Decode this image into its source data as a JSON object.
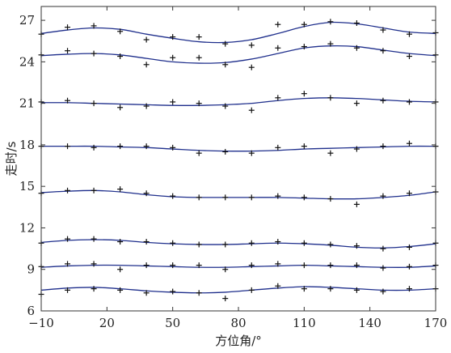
{
  "chart_data": {
    "type": "scatter",
    "xlabel": "方位角/°",
    "ylabel": "走时/s",
    "xlim": [
      -10,
      170
    ],
    "ylim": [
      6,
      28
    ],
    "xticks": [
      -10,
      20,
      50,
      80,
      110,
      140,
      170
    ],
    "xtick_labels": [
      "−10",
      "20",
      "50",
      "80",
      "110",
      "140",
      "170"
    ],
    "yticks": [
      6,
      9,
      12,
      15,
      18,
      21,
      24,
      27
    ],
    "ytick_labels": [
      "6",
      "9",
      "12",
      "15",
      "18",
      "21",
      "24",
      "27"
    ],
    "grid": false,
    "colors": {
      "curve": "#1f2f8c",
      "marker": "#111111"
    },
    "marker_symbol": "+",
    "series": [
      {
        "x": [
          -10,
          2,
          14,
          26,
          38,
          50,
          62,
          74,
          86,
          98,
          110,
          122,
          134,
          146,
          158,
          170
        ],
        "points": [
          7.2,
          7.5,
          7.6,
          7.5,
          7.3,
          7.4,
          7.3,
          6.9,
          7.5,
          7.8,
          7.6,
          7.6,
          7.5,
          7.4,
          7.6,
          7.6
        ],
        "curve": [
          7.5,
          7.65,
          7.7,
          7.6,
          7.45,
          7.35,
          7.3,
          7.35,
          7.5,
          7.65,
          7.75,
          7.7,
          7.6,
          7.5,
          7.5,
          7.6
        ]
      },
      {
        "x": [
          -10,
          2,
          14,
          26,
          38,
          50,
          62,
          74,
          86,
          98,
          110,
          122,
          134,
          146,
          158,
          170
        ],
        "points": [
          9.2,
          9.4,
          9.4,
          9.0,
          9.3,
          9.3,
          9.3,
          9.0,
          9.3,
          9.4,
          9.3,
          9.3,
          9.3,
          9.1,
          9.2,
          9.3
        ],
        "curve": [
          9.15,
          9.25,
          9.3,
          9.3,
          9.25,
          9.2,
          9.15,
          9.15,
          9.2,
          9.25,
          9.3,
          9.25,
          9.2,
          9.15,
          9.15,
          9.25
        ]
      },
      {
        "x": [
          -10,
          2,
          14,
          26,
          38,
          50,
          62,
          74,
          86,
          98,
          110,
          122,
          134,
          146,
          158,
          170
        ],
        "points": [
          10.9,
          11.2,
          11.2,
          11.0,
          11.0,
          10.9,
          10.8,
          10.8,
          10.9,
          11.0,
          10.9,
          10.8,
          10.7,
          10.5,
          10.6,
          10.9
        ],
        "curve": [
          10.95,
          11.1,
          11.15,
          11.1,
          10.95,
          10.85,
          10.8,
          10.8,
          10.85,
          10.9,
          10.85,
          10.75,
          10.6,
          10.55,
          10.65,
          10.85
        ]
      },
      {
        "x": [
          -10,
          2,
          14,
          26,
          38,
          50,
          62,
          74,
          86,
          98,
          110,
          122,
          134,
          146,
          158,
          170
        ],
        "points": [
          14.5,
          14.7,
          14.7,
          14.8,
          14.5,
          14.3,
          14.2,
          14.2,
          14.2,
          14.3,
          14.2,
          14.1,
          13.7,
          14.3,
          14.5,
          14.6
        ],
        "curve": [
          14.55,
          14.65,
          14.7,
          14.6,
          14.4,
          14.25,
          14.2,
          14.2,
          14.2,
          14.2,
          14.15,
          14.1,
          14.1,
          14.2,
          14.35,
          14.6
        ]
      },
      {
        "x": [
          -10,
          2,
          14,
          26,
          38,
          50,
          62,
          74,
          86,
          98,
          110,
          122,
          134,
          146,
          158,
          170
        ],
        "points": [
          17.9,
          17.9,
          17.8,
          17.9,
          17.9,
          17.8,
          17.4,
          17.5,
          17.4,
          17.8,
          17.9,
          17.4,
          17.7,
          17.9,
          18.1,
          17.9
        ],
        "curve": [
          17.9,
          17.9,
          17.9,
          17.85,
          17.8,
          17.7,
          17.6,
          17.55,
          17.55,
          17.6,
          17.7,
          17.75,
          17.8,
          17.85,
          17.9,
          17.9
        ]
      },
      {
        "x": [
          -10,
          2,
          14,
          26,
          38,
          50,
          62,
          74,
          86,
          98,
          110,
          122,
          134,
          146,
          158,
          170
        ],
        "points": [
          21.1,
          21.2,
          21.0,
          20.7,
          20.8,
          21.1,
          21.0,
          20.8,
          20.5,
          21.4,
          21.7,
          21.4,
          21.0,
          21.2,
          21.1,
          21.1
        ],
        "curve": [
          21.05,
          21.05,
          21.0,
          20.95,
          20.9,
          20.85,
          20.85,
          20.9,
          21.0,
          21.2,
          21.35,
          21.4,
          21.35,
          21.25,
          21.15,
          21.1
        ]
      },
      {
        "x": [
          -10,
          2,
          14,
          26,
          38,
          50,
          62,
          74,
          86,
          98,
          110,
          122,
          134,
          146,
          158,
          170
        ],
        "points": [
          24.5,
          24.8,
          24.6,
          24.4,
          23.8,
          24.3,
          24.3,
          23.8,
          23.6,
          25.0,
          25.1,
          25.3,
          25.0,
          24.8,
          24.4,
          24.5
        ],
        "curve": [
          24.45,
          24.55,
          24.6,
          24.5,
          24.25,
          24.0,
          23.9,
          23.95,
          24.2,
          24.6,
          25.0,
          25.15,
          25.1,
          24.85,
          24.6,
          24.45
        ]
      },
      {
        "x": [
          -10,
          2,
          14,
          26,
          38,
          50,
          62,
          74,
          86,
          98,
          110,
          122,
          134,
          146,
          158,
          170
        ],
        "points": [
          26.0,
          26.5,
          26.6,
          26.2,
          25.6,
          25.8,
          25.8,
          25.3,
          25.2,
          26.7,
          26.7,
          26.9,
          26.8,
          26.3,
          26.0,
          26.1
        ],
        "curve": [
          26.05,
          26.3,
          26.45,
          26.35,
          26.0,
          25.7,
          25.45,
          25.4,
          25.6,
          26.05,
          26.55,
          26.85,
          26.75,
          26.45,
          26.15,
          26.05
        ]
      }
    ]
  }
}
